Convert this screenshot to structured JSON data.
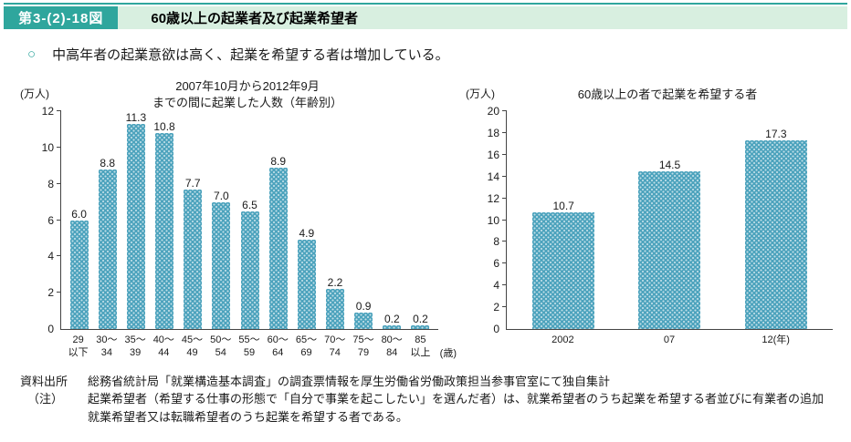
{
  "header": {
    "figure_label": "第3-(2)-18図",
    "title": "60歳以上の起業者及び起業希望者"
  },
  "lead": {
    "bullet": "○",
    "text": "中高年者の起業意欲は高く、起業を希望する者は増加している。"
  },
  "colors": {
    "accent_teal": "#2fa69d",
    "title_band_green": "#d8efe0",
    "bar_fill": "#4da3bd"
  },
  "chart_data": [
    {
      "type": "bar",
      "title": "2007年10月から2012年9月\nまでの間に起業した人数（年齢別）",
      "unit_label": "(万人)",
      "x_unit_label": "(歳)",
      "categories": [
        "29\n以下",
        "30～\n34",
        "35～\n39",
        "40～\n44",
        "45～\n49",
        "50～\n54",
        "55～\n59",
        "60～\n64",
        "65～\n69",
        "70～\n74",
        "75～\n79",
        "80～\n84",
        "85\n以上"
      ],
      "values": [
        6.0,
        8.8,
        11.3,
        10.8,
        7.7,
        7.0,
        6.5,
        8.9,
        4.9,
        2.2,
        0.9,
        0.2,
        0.2
      ],
      "ylim": [
        0,
        12
      ],
      "ytick_step": 2,
      "grid": false,
      "legend": "none"
    },
    {
      "type": "bar",
      "title": "60歳以上の者で起業を希望する者",
      "unit_label": "(万人)",
      "categories": [
        "2002",
        "07",
        "12(年)"
      ],
      "values": [
        10.7,
        14.5,
        17.3
      ],
      "ylim": [
        0,
        20
      ],
      "ytick_step": 2,
      "grid": false,
      "legend": "none"
    }
  ],
  "footer": {
    "source_label": "資料出所",
    "source_text": "総務省統計局「就業構造基本調査」の調査票情報を厚生労働省労働政策担当参事官室にて独自集計",
    "note_label": "（注）",
    "note_text": "起業希望者（希望する仕事の形態で「自分で事業を起こしたい」を選んだ者）は、就業希望者のうち起業を希望する者並びに有業者の追加就業希望者又は転職希望者のうち起業を希望する者である。"
  }
}
